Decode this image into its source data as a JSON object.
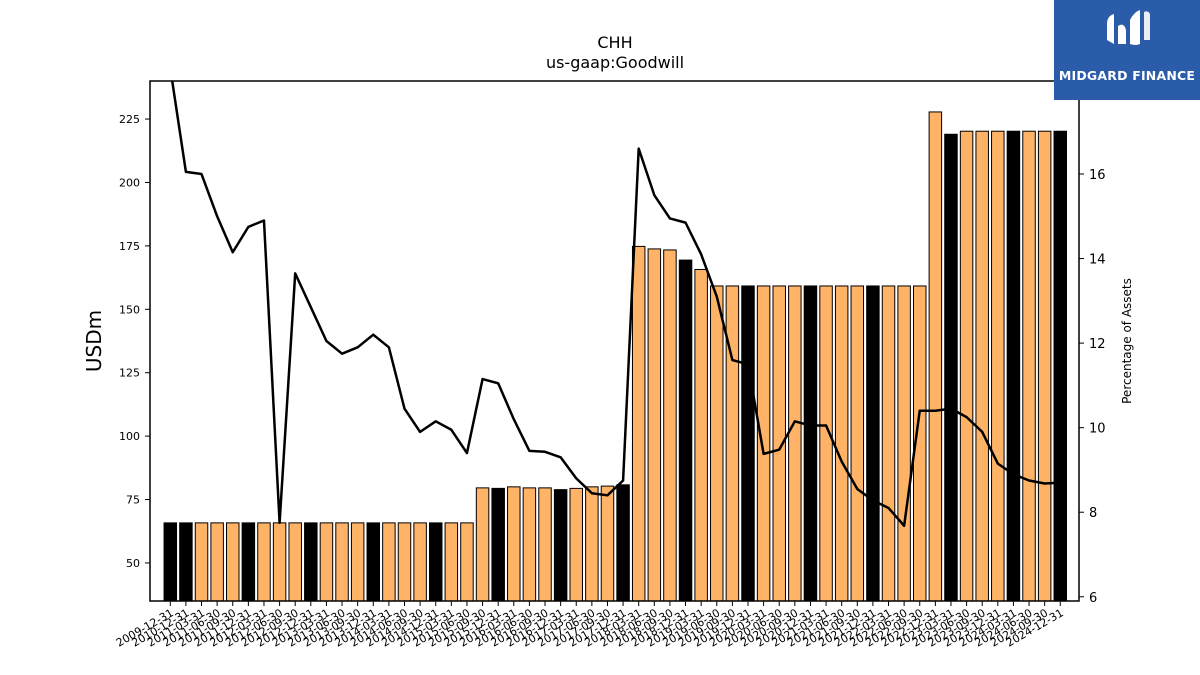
{
  "chart_data": {
    "type": "bar",
    "title": "CHH",
    "subtitle": "us-gaap:Goodwill",
    "ylabel": "USDm",
    "y2label": "Percentage of Assets",
    "ylim": [
      35,
      240
    ],
    "y2lim": [
      5.9,
      18.2
    ],
    "yticks": [
      50,
      75,
      100,
      125,
      150,
      175,
      200,
      225
    ],
    "y2ticks": [
      6,
      8,
      10,
      12,
      14,
      16
    ],
    "grid": false,
    "colors": {
      "bar": "#ffb366",
      "bar_highlight": "#000000",
      "line": "#000000"
    },
    "categories": [
      "2009-12-31",
      "2010-12-31",
      "2011-03-31",
      "2011-06-30",
      "2011-09-30",
      "2011-12-31",
      "2012-03-31",
      "2012-06-30",
      "2012-09-30",
      "2012-12-31",
      "2013-03-31",
      "2013-06-30",
      "2013-09-30",
      "2013-12-31",
      "2014-03-31",
      "2014-06-30",
      "2014-09-30",
      "2014-12-31",
      "2015-03-31",
      "2015-06-30",
      "2015-09-30",
      "2015-12-31",
      "2016-03-31",
      "2016-06-30",
      "2016-09-30",
      "2016-12-31",
      "2017-03-31",
      "2017-06-30",
      "2017-09-30",
      "2017-12-31",
      "2018-03-31",
      "2018-06-30",
      "2018-09-30",
      "2018-12-31",
      "2019-03-31",
      "2019-06-30",
      "2019-09-30",
      "2019-12-31",
      "2020-03-31",
      "2020-06-30",
      "2020-09-30",
      "2020-12-31",
      "2021-03-31",
      "2021-06-30",
      "2021-09-30",
      "2021-12-31",
      "2022-03-31",
      "2022-06-30",
      "2022-09-30",
      "2022-12-31",
      "2023-03-31",
      "2023-06-30",
      "2023-09-30",
      "2023-12-31",
      "2024-03-31",
      "2024-06-30",
      "2024-09-30",
      "2024-12-31"
    ],
    "series": [
      {
        "type": "bar",
        "values": [
          65.8,
          65.8,
          65.8,
          65.8,
          65.8,
          65.8,
          65.8,
          65.8,
          65.8,
          65.8,
          65.8,
          65.8,
          65.8,
          65.8,
          65.8,
          65.8,
          65.8,
          65.8,
          65.8,
          65.8,
          79.6,
          79.4,
          80.0,
          79.6,
          79.6,
          78.9,
          79.4,
          80.0,
          80.3,
          80.8,
          174.8,
          173.8,
          173.4,
          169.4,
          165.7,
          159.2,
          159.2,
          159.2,
          159.2,
          159.2,
          159.2,
          159.2,
          159.2,
          159.2,
          159.2,
          159.2,
          159.2,
          159.2,
          159.2,
          227.8,
          219.0,
          220.2,
          220.2,
          220.2,
          220.2,
          220.2,
          220.2,
          220.2
        ],
        "highlight": [
          true,
          true,
          false,
          false,
          false,
          true,
          false,
          false,
          false,
          true,
          false,
          false,
          false,
          true,
          false,
          false,
          false,
          true,
          false,
          false,
          false,
          true,
          false,
          false,
          false,
          true,
          false,
          false,
          false,
          true,
          false,
          false,
          false,
          true,
          false,
          false,
          false,
          true,
          false,
          false,
          false,
          true,
          false,
          false,
          false,
          true,
          false,
          false,
          false,
          false,
          true,
          false,
          false,
          false,
          true,
          false,
          false,
          true
        ]
      },
      {
        "type": "line",
        "axis": "right",
        "values": [
          18.5,
          16.05,
          16.0,
          15.0,
          14.15,
          14.75,
          14.9,
          7.75,
          13.65,
          12.85,
          12.05,
          11.75,
          11.9,
          12.2,
          11.9,
          10.45,
          9.9,
          10.15,
          9.95,
          9.4,
          11.15,
          11.05,
          10.2,
          9.45,
          9.43,
          9.3,
          8.8,
          8.45,
          8.4,
          8.75,
          16.6,
          15.5,
          14.95,
          14.85,
          14.1,
          13.1,
          11.6,
          11.5,
          9.38,
          9.48,
          10.15,
          10.05,
          10.05,
          9.2,
          8.55,
          8.28,
          8.1,
          7.68,
          10.4,
          10.4,
          10.45,
          10.25,
          9.9,
          9.15,
          8.9,
          8.75,
          8.68,
          8.7
        ]
      }
    ]
  },
  "brand": {
    "name": "MIDGARD FINANCE",
    "logo_icon": "midgard-mark-icon",
    "color": "#2a5caa"
  }
}
